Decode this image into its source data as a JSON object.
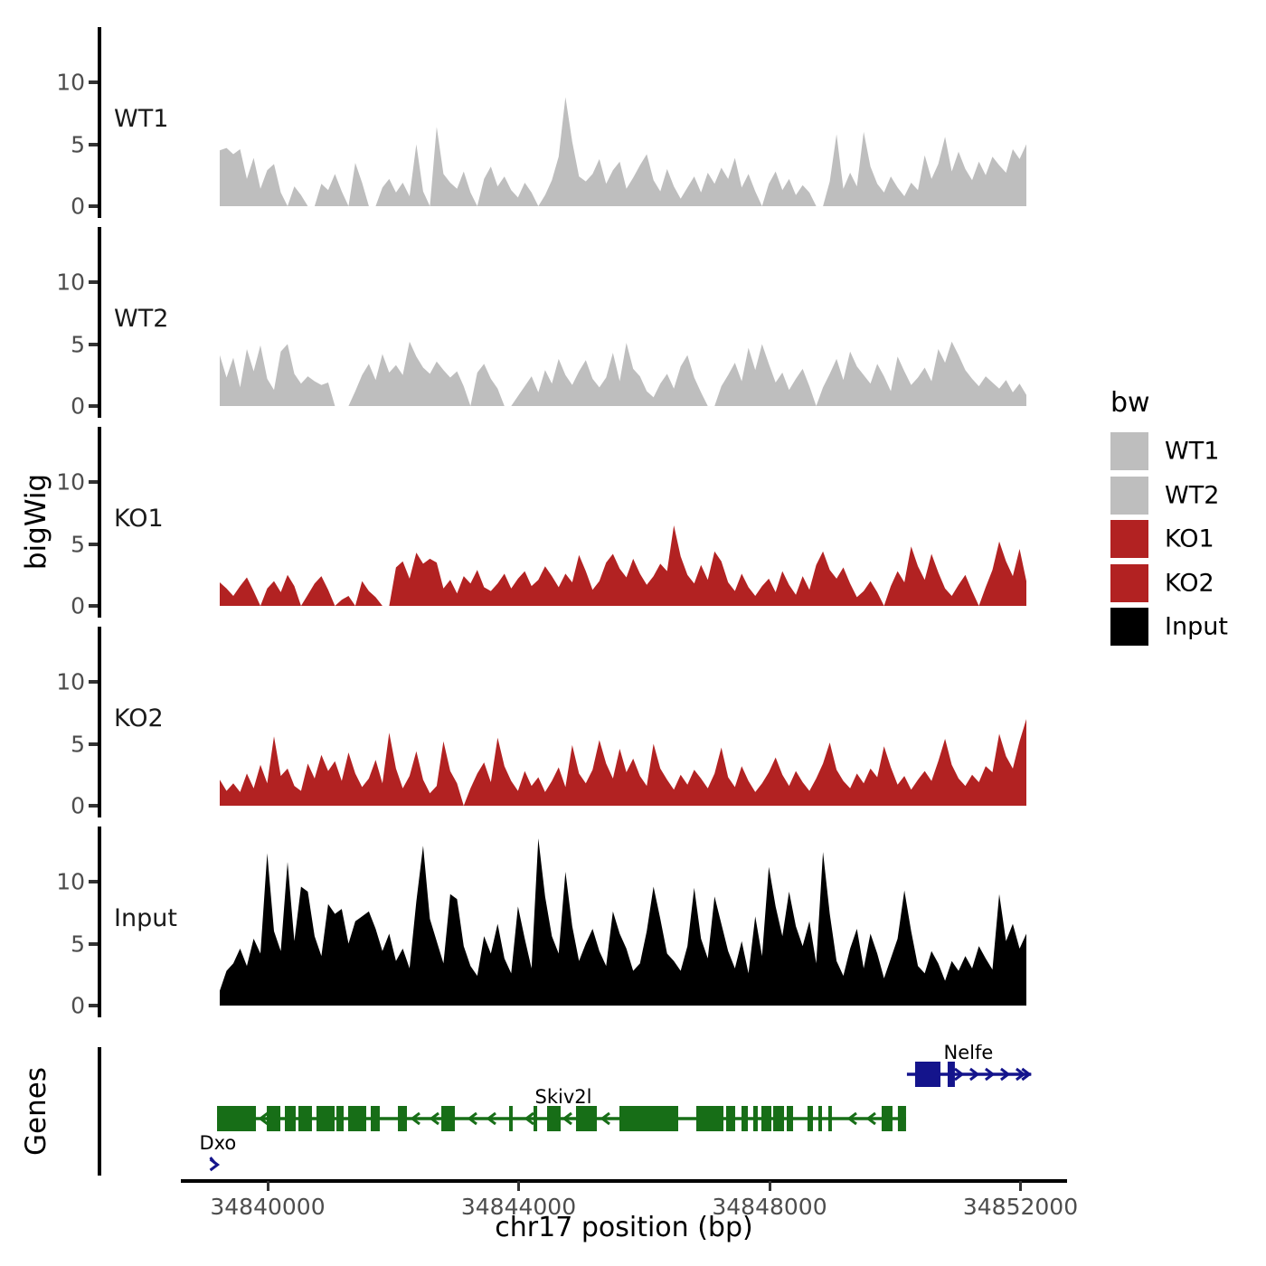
{
  "figure": {
    "background": "#ffffff"
  },
  "colors": {
    "wt_gray": "#bebebe",
    "ko_red": "#b22222",
    "input_black": "#000000",
    "gene_green": "#176e17",
    "gene_navy": "#14148c",
    "tick_text": "#4d4d4d",
    "axis": "#000000"
  },
  "legend": {
    "title": "bw",
    "items": [
      {
        "label": "WT1",
        "color": "#bebebe"
      },
      {
        "label": "WT2",
        "color": "#bebebe"
      },
      {
        "label": "KO1",
        "color": "#b22222"
      },
      {
        "label": "KO2",
        "color": "#b22222"
      },
      {
        "label": "Input",
        "color": "#000000"
      }
    ]
  },
  "chart_data": {
    "type": "area",
    "title": "",
    "xlabel": "chr17 position (bp)",
    "ylabel": "bigWig",
    "genes_row_label": "Genes",
    "x_range_bp": [
      34839240,
      34852090
    ],
    "x_axis_ticks": [
      34840000,
      34844000,
      34848000,
      34852000
    ],
    "x_axis_tick_labels": [
      "34840000",
      "34844000",
      "34848000",
      "34852000"
    ],
    "y_axis_ticks": [
      0,
      5,
      10
    ],
    "y_axis_tick_labels": [
      "0",
      "5",
      "10"
    ],
    "panel_ymax": 14.5,
    "grid": "off",
    "legend_position": "right",
    "tracks": [
      {
        "name": "WT1",
        "color": "#bebebe",
        "values": [
          4.5,
          4.7,
          4.2,
          4.6,
          2.2,
          3.9,
          1.4,
          2.9,
          3.4,
          1.1,
          0,
          1.6,
          0.9,
          0,
          0,
          1.8,
          1.3,
          2.6,
          1.2,
          0,
          3.5,
          1.9,
          0,
          0,
          1.5,
          2.2,
          1.1,
          1.9,
          0.8,
          5.0,
          1.2,
          0,
          6.4,
          2.6,
          1.9,
          1.4,
          2.8,
          1.1,
          0,
          2.2,
          3.2,
          1.6,
          2.4,
          1.3,
          0.7,
          1.9,
          1.1,
          0,
          0.9,
          2.1,
          4.0,
          8.8,
          5.2,
          2.4,
          2.0,
          2.6,
          3.8,
          1.8,
          2.9,
          3.6,
          1.4,
          2.3,
          3.3,
          4.2,
          2.1,
          1.2,
          3.0,
          1.6,
          0.6,
          1.5,
          2.4,
          1.1,
          2.7,
          1.8,
          3.1,
          2.2,
          3.9,
          1.5,
          2.6,
          1.2,
          0,
          1.8,
          2.8,
          1.3,
          2.2,
          0.9,
          1.7,
          1.1,
          0,
          0,
          2.0,
          5.8,
          1.4,
          2.7,
          1.6,
          6.0,
          3.2,
          1.8,
          1.1,
          2.4,
          1.5,
          0.8,
          1.9,
          1.3,
          4.1,
          2.2,
          3.4,
          5.6,
          2.8,
          4.4,
          3.0,
          2.1,
          3.6,
          2.5,
          4.0,
          3.3,
          2.7,
          4.6,
          3.8,
          5.0
        ]
      },
      {
        "name": "WT2",
        "color": "#bebebe",
        "values": [
          4.1,
          2.3,
          3.9,
          1.5,
          4.6,
          2.8,
          4.9,
          2.2,
          1.3,
          4.4,
          5.0,
          2.6,
          1.8,
          2.4,
          2.0,
          1.7,
          1.9,
          0,
          0,
          0,
          1.2,
          2.5,
          3.4,
          2.1,
          4.2,
          2.7,
          3.3,
          2.5,
          5.2,
          4.0,
          3.1,
          2.6,
          3.6,
          2.9,
          2.3,
          2.8,
          1.6,
          0,
          2.7,
          3.4,
          2.2,
          1.4,
          0,
          0,
          0.8,
          1.6,
          2.4,
          1.1,
          2.9,
          1.8,
          3.8,
          2.5,
          1.7,
          2.8,
          3.7,
          2.2,
          1.5,
          2.3,
          4.3,
          2.0,
          5.1,
          3.0,
          2.4,
          1.2,
          0.7,
          1.8,
          2.6,
          1.4,
          3.2,
          4.1,
          2.3,
          1.1,
          0,
          0,
          1.6,
          2.5,
          3.5,
          2.0,
          4.7,
          2.9,
          5.0,
          3.4,
          1.9,
          2.7,
          1.3,
          2.2,
          3.0,
          1.6,
          0,
          1.5,
          2.6,
          3.8,
          2.1,
          4.4,
          3.2,
          2.5,
          1.8,
          3.4,
          2.4,
          1.2,
          4.0,
          2.8,
          1.7,
          2.3,
          3.1,
          2.0,
          4.6,
          3.5,
          5.2,
          4.1,
          2.9,
          2.2,
          1.6,
          2.4,
          1.9,
          1.4,
          2.1,
          1.1,
          1.8,
          0.9
        ]
      },
      {
        "name": "KO1",
        "color": "#b22222",
        "values": [
          1.9,
          1.4,
          0.8,
          1.6,
          2.3,
          1.2,
          0,
          1.4,
          2.0,
          1.1,
          2.5,
          1.6,
          0,
          0.9,
          1.8,
          2.4,
          1.3,
          0,
          0.5,
          0.8,
          0,
          2.0,
          1.2,
          0.7,
          0,
          0,
          3.1,
          3.6,
          2.2,
          4.3,
          3.4,
          3.8,
          3.5,
          1.4,
          2.1,
          1.0,
          2.4,
          1.8,
          2.9,
          1.5,
          1.2,
          1.8,
          2.6,
          1.4,
          2.2,
          2.8,
          1.6,
          2.1,
          3.2,
          2.4,
          1.5,
          2.6,
          1.9,
          4.1,
          2.8,
          1.3,
          2.0,
          3.5,
          4.2,
          3.0,
          2.3,
          3.8,
          2.6,
          1.7,
          2.4,
          3.4,
          2.8,
          6.5,
          4.0,
          2.5,
          1.8,
          3.3,
          2.1,
          4.4,
          3.6,
          1.9,
          1.2,
          2.6,
          1.5,
          0.8,
          1.6,
          2.2,
          1.1,
          2.8,
          1.7,
          0.9,
          2.4,
          1.3,
          3.3,
          4.4,
          2.9,
          2.2,
          3.1,
          1.8,
          0.7,
          1.2,
          2.0,
          1.1,
          0,
          1.6,
          2.8,
          1.9,
          4.8,
          3.2,
          2.1,
          4.2,
          2.7,
          1.4,
          0.8,
          1.7,
          2.5,
          1.2,
          0,
          1.5,
          2.9,
          5.2,
          3.6,
          2.4,
          4.6,
          2.0
        ]
      },
      {
        "name": "KO2",
        "color": "#b22222",
        "values": [
          2.1,
          1.2,
          1.8,
          1.1,
          2.6,
          1.4,
          3.3,
          1.8,
          5.6,
          2.4,
          3.0,
          1.6,
          1.2,
          3.4,
          2.2,
          4.1,
          2.8,
          3.6,
          2.0,
          4.3,
          2.6,
          1.5,
          2.2,
          3.7,
          1.8,
          5.9,
          3.0,
          1.4,
          2.4,
          4.4,
          2.1,
          1.0,
          1.6,
          5.2,
          2.8,
          1.8,
          0,
          1.4,
          2.6,
          3.5,
          1.9,
          5.5,
          3.2,
          2.0,
          1.2,
          2.8,
          1.6,
          2.3,
          1.1,
          2.0,
          3.1,
          1.5,
          4.9,
          2.6,
          1.8,
          2.9,
          5.3,
          3.4,
          2.2,
          4.6,
          2.7,
          3.8,
          2.4,
          1.6,
          5.0,
          3.0,
          2.1,
          1.3,
          2.5,
          1.7,
          2.9,
          2.2,
          1.4,
          2.6,
          4.7,
          2.3,
          1.5,
          3.2,
          2.0,
          1.1,
          1.8,
          2.7,
          3.9,
          2.5,
          1.6,
          2.8,
          1.9,
          1.2,
          2.2,
          3.4,
          5.1,
          2.9,
          2.0,
          1.4,
          2.6,
          1.8,
          3.0,
          2.3,
          4.8,
          3.1,
          1.7,
          2.4,
          1.3,
          2.1,
          2.8,
          2.0,
          3.6,
          5.4,
          3.3,
          2.2,
          1.6,
          2.5,
          1.9,
          3.2,
          2.7,
          5.8,
          4.0,
          3.0,
          5.2,
          7.0
        ]
      },
      {
        "name": "Input",
        "color": "#000000",
        "values": [
          1.2,
          2.8,
          3.4,
          4.6,
          3.2,
          5.4,
          4.2,
          12.3,
          6.0,
          4.4,
          11.6,
          5.2,
          9.6,
          9.2,
          5.6,
          4.0,
          8.2,
          7.4,
          7.8,
          5.0,
          6.8,
          7.2,
          7.6,
          6.2,
          4.4,
          5.8,
          3.6,
          4.6,
          3.0,
          8.4,
          12.9,
          7.0,
          5.2,
          3.4,
          9.0,
          8.6,
          4.8,
          3.2,
          2.4,
          5.6,
          4.2,
          6.6,
          3.8,
          2.6,
          8.0,
          5.4,
          3.0,
          13.5,
          8.8,
          5.6,
          4.2,
          10.8,
          6.4,
          3.6,
          5.0,
          6.2,
          4.4,
          3.2,
          7.6,
          5.8,
          4.6,
          2.8,
          3.4,
          6.0,
          9.6,
          7.0,
          4.2,
          3.6,
          2.8,
          4.8,
          9.5,
          5.4,
          3.8,
          8.8,
          6.6,
          4.4,
          3.0,
          5.2,
          2.6,
          7.2,
          4.0,
          11.2,
          8.0,
          5.6,
          9.2,
          6.4,
          4.8,
          6.8,
          3.4,
          12.4,
          7.4,
          3.6,
          2.4,
          4.6,
          6.2,
          3.0,
          5.8,
          4.2,
          2.2,
          3.8,
          5.4,
          9.3,
          6.0,
          3.2,
          2.6,
          4.4,
          3.4,
          2.0,
          3.6,
          2.8,
          4.0,
          3.0,
          4.8,
          3.8,
          2.9,
          9.0,
          5.2,
          6.6,
          4.6,
          5.8
        ]
      }
    ],
    "genes_track": {
      "label": "Genes",
      "genes": [
        {
          "name": "Skiv2l",
          "strand": "-",
          "color": "#176e17",
          "start": 34839193,
          "end": 34850176,
          "label_bp": 34844714,
          "exons": [
            [
              34839193,
              34839813
            ],
            [
              34839986,
              34840202
            ],
            [
              34840274,
              34840447
            ],
            [
              34840490,
              34840706
            ],
            [
              34840778,
              34841067
            ],
            [
              34841096,
              34841211
            ],
            [
              34841283,
              34841571
            ],
            [
              34841643,
              34841787
            ],
            [
              34842076,
              34842220
            ],
            [
              34842768,
              34842984
            ],
            [
              34843849,
              34843906
            ],
            [
              34844238,
              34844296
            ],
            [
              34844454,
              34844670
            ],
            [
              34844915,
              34845247
            ],
            [
              34845607,
              34846544
            ],
            [
              34846832,
              34847265
            ],
            [
              34847308,
              34847452
            ],
            [
              34847553,
              34847654
            ],
            [
              34847740,
              34847812
            ],
            [
              34847870,
              34848029
            ],
            [
              34848058,
              34848231
            ],
            [
              34848274,
              34848375
            ],
            [
              34848605,
              34848692
            ],
            [
              34848778,
              34848836
            ],
            [
              34848937,
              34848994
            ],
            [
              34849787,
              34849960
            ],
            [
              34850046,
              34850176
            ]
          ]
        },
        {
          "name": "Nelfe",
          "strand": "+",
          "color": "#14148c",
          "start": 34850190,
          "end": 34852170,
          "label_bp": 34851170,
          "exons": [
            [
              34850320,
              34850724
            ],
            [
              34850839,
              34850954
            ]
          ]
        },
        {
          "name": "Dxo",
          "strand": "+",
          "color": "#14148c",
          "start": 34839100,
          "end": 34839240,
          "label_bp": 34839205,
          "exons": []
        }
      ]
    }
  }
}
